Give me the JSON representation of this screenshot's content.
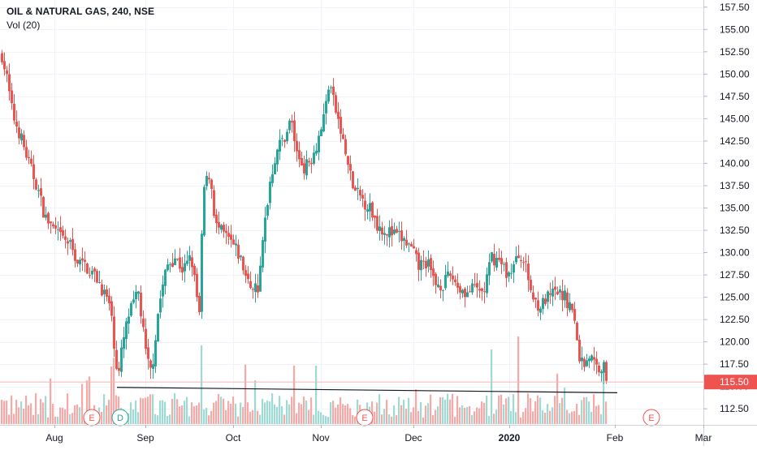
{
  "header": {
    "symbol_line": "OIL & NATURAL GAS, 240, NSE",
    "volume_label": "Vol (20)"
  },
  "colors": {
    "up": "#26a69a",
    "down": "#ef5350",
    "up_volume": "#9ed9d3",
    "down_volume": "#f7a9a7",
    "price_line": "#ef5350",
    "support_line": "#131722",
    "grid": "#f0f3fa",
    "axis_text": "#131722"
  },
  "chart_data": {
    "type": "candlestick",
    "y_axis": {
      "ylim": [
        110.7,
        158.3
      ],
      "ticks": [
        "112.50",
        "115.00",
        "117.50",
        "120.00",
        "122.50",
        "125.00",
        "127.50",
        "130.00",
        "132.50",
        "135.00",
        "137.50",
        "140.00",
        "142.50",
        "145.00",
        "147.50",
        "150.00",
        "152.50",
        "155.00",
        "157.50"
      ]
    },
    "x_axis": {
      "labels": [
        "Aug",
        "Sep",
        "Oct",
        "Nov",
        "Dec",
        "2020",
        "Feb",
        "Mar"
      ]
    },
    "price_tag": "115.50",
    "support_line": {
      "from": 114.9,
      "to": 114.3
    },
    "events": [
      {
        "label": "E",
        "type": "earnings"
      },
      {
        "label": "D",
        "type": "dividend"
      },
      {
        "label": "E",
        "type": "earnings"
      },
      {
        "label": "E",
        "type": "earnings"
      }
    ],
    "anchors": [
      [
        0,
        153.0
      ],
      [
        8,
        149.5
      ],
      [
        15,
        145.5
      ],
      [
        25,
        143.0
      ],
      [
        35,
        140.0
      ],
      [
        45,
        137.5
      ],
      [
        55,
        134.0
      ],
      [
        70,
        132.0
      ],
      [
        85,
        131.0
      ],
      [
        95,
        129.0
      ],
      [
        105,
        128.5
      ],
      [
        120,
        127.0
      ],
      [
        135,
        124.0
      ],
      [
        145,
        115.8
      ],
      [
        150,
        119.5
      ],
      [
        158,
        123.0
      ],
      [
        170,
        125.5
      ],
      [
        180,
        118.0
      ],
      [
        186,
        116.5
      ],
      [
        195,
        124.0
      ],
      [
        205,
        128.5
      ],
      [
        215,
        129.5
      ],
      [
        225,
        128.0
      ],
      [
        235,
        129.5
      ],
      [
        245,
        123.0
      ],
      [
        250,
        137.0
      ],
      [
        258,
        139.0
      ],
      [
        265,
        133.0
      ],
      [
        275,
        132.0
      ],
      [
        285,
        131.0
      ],
      [
        295,
        129.5
      ],
      [
        305,
        126.5
      ],
      [
        318,
        126.0
      ],
      [
        325,
        133.0
      ],
      [
        332,
        138.0
      ],
      [
        340,
        141.5
      ],
      [
        350,
        143.0
      ],
      [
        358,
        145.0
      ],
      [
        365,
        141.0
      ],
      [
        375,
        139.5
      ],
      [
        385,
        141.0
      ],
      [
        392,
        143.0
      ],
      [
        400,
        146.0
      ],
      [
        405,
        149.5
      ],
      [
        410,
        147.0
      ],
      [
        418,
        144.0
      ],
      [
        425,
        141.0
      ],
      [
        435,
        137.0
      ],
      [
        445,
        136.0
      ],
      [
        455,
        135.0
      ],
      [
        465,
        133.0
      ],
      [
        475,
        132.5
      ],
      [
        485,
        132.0
      ],
      [
        495,
        131.5
      ],
      [
        505,
        130.5
      ],
      [
        515,
        128.5
      ],
      [
        525,
        129.0
      ],
      [
        535,
        126.5
      ],
      [
        545,
        126.5
      ],
      [
        555,
        127.5
      ],
      [
        565,
        126.0
      ],
      [
        575,
        125.5
      ],
      [
        585,
        126.0
      ],
      [
        595,
        125.5
      ],
      [
        605,
        129.5
      ],
      [
        615,
        129.0
      ],
      [
        625,
        127.5
      ],
      [
        632,
        128.5
      ],
      [
        640,
        130.0
      ],
      [
        648,
        128.0
      ],
      [
        655,
        125.0
      ],
      [
        665,
        124.0
      ],
      [
        675,
        125.0
      ],
      [
        685,
        125.5
      ],
      [
        695,
        125.0
      ],
      [
        705,
        123.5
      ],
      [
        712,
        118.5
      ],
      [
        718,
        117.5
      ],
      [
        725,
        118.5
      ],
      [
        735,
        117.0
      ],
      [
        742,
        117.5
      ],
      [
        748,
        115.5
      ]
    ]
  }
}
